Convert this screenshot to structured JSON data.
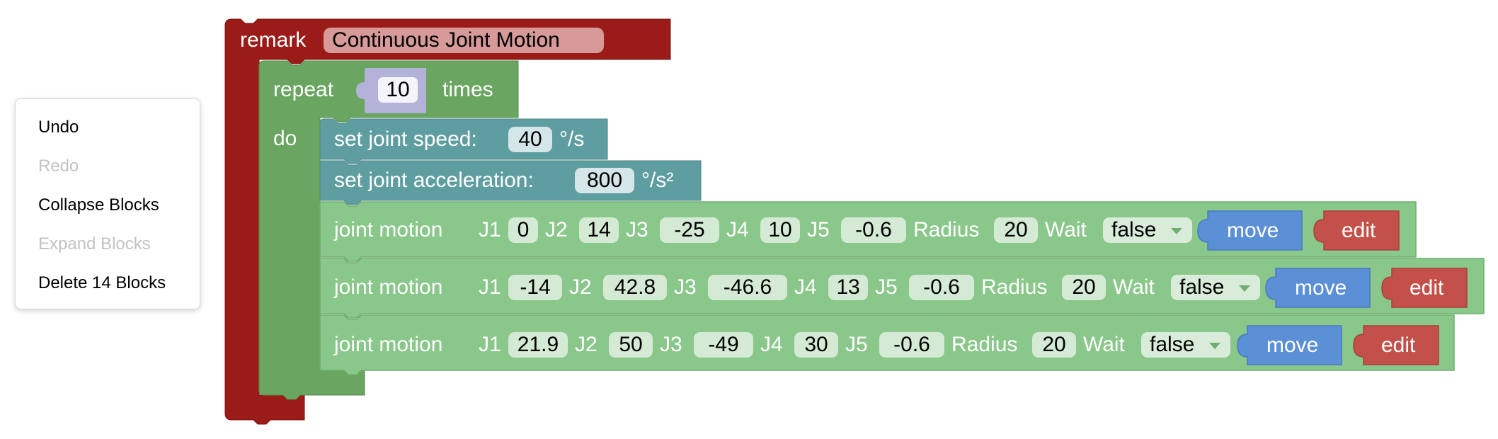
{
  "context_menu": {
    "items": [
      {
        "label": "Undo",
        "enabled": true
      },
      {
        "label": "Redo",
        "enabled": false
      },
      {
        "label": "Collapse Blocks",
        "enabled": true
      },
      {
        "label": "Expand Blocks",
        "enabled": false
      },
      {
        "label": "Delete 14 Blocks",
        "enabled": true
      }
    ]
  },
  "remark_block": {
    "keyword": "remark",
    "text": "Continuous Joint Motion",
    "color": "#9a1b17"
  },
  "repeat_block": {
    "keyword": "repeat",
    "count": "10",
    "suffix": "times",
    "do_label": "do",
    "color": "#6aa562"
  },
  "set_speed_block": {
    "label": "set joint speed:",
    "value": "40",
    "unit": "°/s",
    "color": "#5f9ea0"
  },
  "set_accel_block": {
    "label": "set joint acceleration:",
    "value": "800",
    "unit": "°/s²",
    "color": "#5f9ea0"
  },
  "joint_motion_blocks": [
    {
      "label": "joint motion",
      "j1_label": "J1",
      "j1": "0",
      "j2_label": "J2",
      "j2": "14",
      "j3_label": "J3",
      "j3": "-25",
      "j4_label": "J4",
      "j4": "10",
      "j5_label": "J5",
      "j5": "-0.6",
      "radius_label": "Radius",
      "radius": "20",
      "wait_label": "Wait",
      "wait": "false",
      "move_label": "move",
      "edit_label": "edit"
    },
    {
      "label": "joint motion",
      "j1_label": "J1",
      "j1": "-14",
      "j2_label": "J2",
      "j2": "42.8",
      "j3_label": "J3",
      "j3": "-46.6",
      "j4_label": "J4",
      "j4": "13",
      "j5_label": "J5",
      "j5": "-0.6",
      "radius_label": "Radius",
      "radius": "20",
      "wait_label": "Wait",
      "wait": "false",
      "move_label": "move",
      "edit_label": "edit"
    },
    {
      "label": "joint motion",
      "j1_label": "J1",
      "j1": "21.9",
      "j2_label": "J2",
      "j2": "50",
      "j3_label": "J3",
      "j3": "-49",
      "j4_label": "J4",
      "j4": "30",
      "j5_label": "J5",
      "j5": "-0.6",
      "radius_label": "Radius",
      "radius": "20",
      "wait_label": "Wait",
      "wait": "false",
      "move_label": "move",
      "edit_label": "edit"
    }
  ],
  "colors": {
    "joint_motion": "#8ac78a",
    "move_button": "#5b8fd6",
    "edit_button": "#c4504a"
  }
}
